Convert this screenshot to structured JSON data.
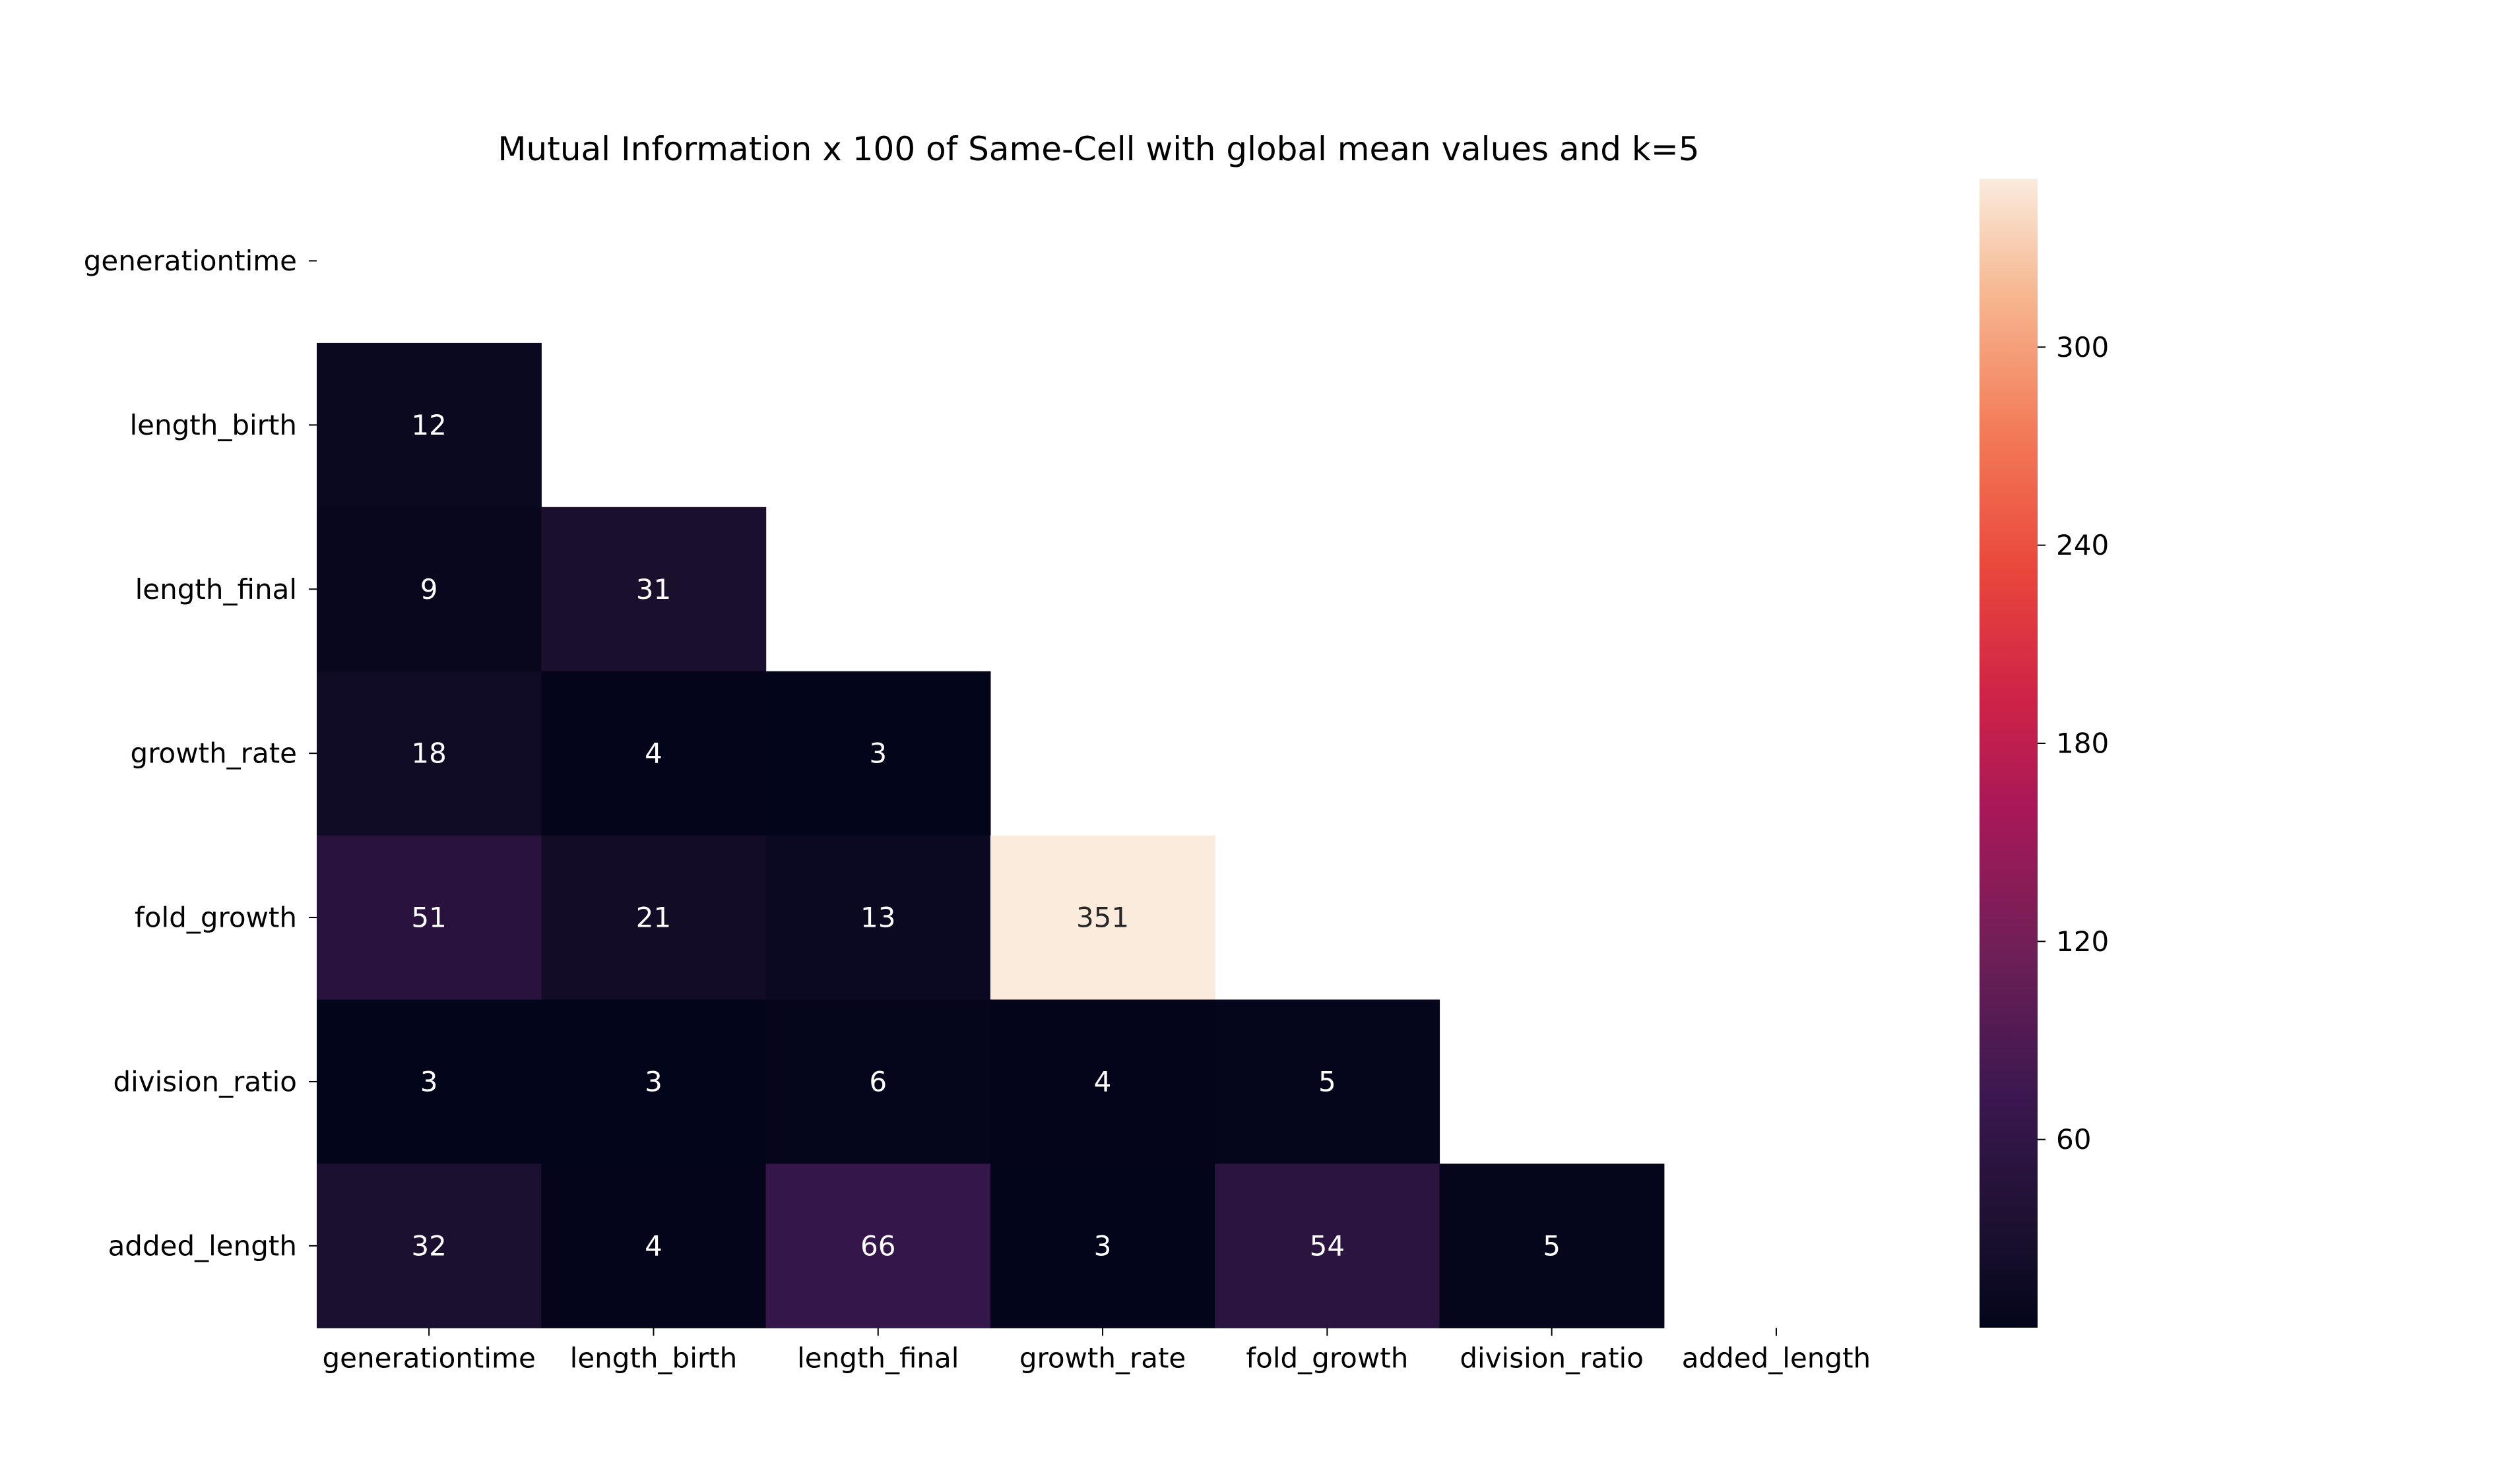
{
  "chart_data": {
    "type": "heatmap",
    "title": "Mutual Information x 100 of Same-Cell with global mean values and k=5",
    "row_labels": [
      "generationtime",
      "length_birth",
      "length_final",
      "growth_rate",
      "fold_growth",
      "division_ratio",
      "added_length"
    ],
    "col_labels": [
      "generationtime",
      "length_birth",
      "length_final",
      "growth_rate",
      "fold_growth",
      "division_ratio",
      "added_length"
    ],
    "values": [
      [
        null,
        null,
        null,
        null,
        null,
        null,
        null
      ],
      [
        12,
        null,
        null,
        null,
        null,
        null,
        null
      ],
      [
        9,
        31,
        null,
        null,
        null,
        null,
        null
      ],
      [
        18,
        4,
        3,
        null,
        null,
        null,
        null
      ],
      [
        51,
        21,
        13,
        351,
        null,
        null,
        null
      ],
      [
        3,
        3,
        6,
        4,
        5,
        null,
        null
      ],
      [
        32,
        4,
        66,
        3,
        54,
        5,
        null
      ]
    ],
    "mask": "upper-triangle-including-diagonal",
    "colormap": "rocket",
    "colorbar": {
      "range": [
        3,
        351
      ],
      "ticks": [
        60,
        120,
        180,
        240,
        300
      ]
    },
    "grid": false,
    "legend": "colorbar-right"
  }
}
